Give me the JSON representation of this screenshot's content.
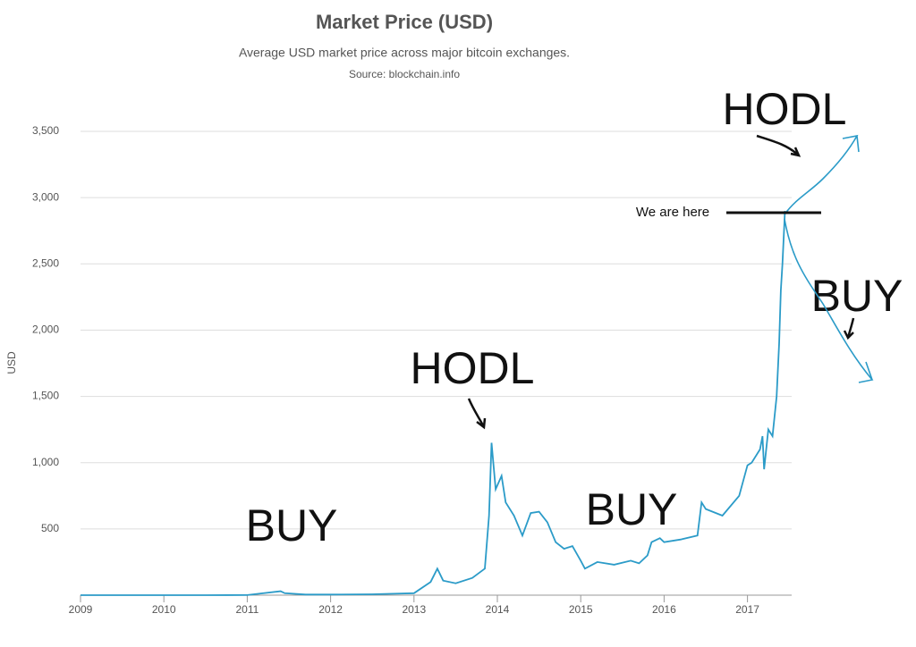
{
  "chart_data": {
    "type": "line",
    "title": "Market Price (USD)",
    "subtitle": "Average USD market price across major bitcoin exchanges.",
    "source": "Source: blockchain.info",
    "y_label": "USD",
    "color": "#2b9bc8",
    "grid": true,
    "xlim": [
      2009,
      2017.53
    ],
    "xticks": [
      2009,
      2010,
      2011,
      2012,
      2013,
      2014,
      2015,
      2016,
      2017
    ],
    "ylim": [
      0,
      3500
    ],
    "yticks": [
      500,
      {
        "value": 1000,
        "label": "1,000"
      },
      {
        "value": 1500,
        "label": "1,500"
      },
      {
        "value": 2000,
        "label": "2,000"
      },
      {
        "value": 2500,
        "label": "2,500"
      },
      {
        "value": 3000,
        "label": "3,000"
      },
      {
        "value": 3500,
        "label": "3,500"
      }
    ],
    "x": [
      2009.0,
      2010.0,
      2010.5,
      2011.0,
      2011.4,
      2011.45,
      2011.7,
      2012.0,
      2012.5,
      2013.0,
      2013.2,
      2013.28,
      2013.35,
      2013.5,
      2013.7,
      2013.85,
      2013.9,
      2013.93,
      2013.98,
      2014.05,
      2014.1,
      2014.2,
      2014.3,
      2014.4,
      2014.5,
      2014.6,
      2014.7,
      2014.8,
      2014.9,
      2015.0,
      2015.05,
      2015.2,
      2015.4,
      2015.6,
      2015.7,
      2015.8,
      2015.85,
      2015.95,
      2016.0,
      2016.2,
      2016.4,
      2016.45,
      2016.5,
      2016.7,
      2016.9,
      2017.0,
      2017.05,
      2017.15,
      2017.18,
      2017.2,
      2017.25,
      2017.3,
      2017.35,
      2017.38,
      2017.4,
      2017.42,
      2017.45
    ],
    "values": [
      0,
      0,
      0,
      1,
      30,
      15,
      5,
      5,
      7,
      15,
      100,
      200,
      110,
      90,
      130,
      200,
      600,
      1150,
      800,
      900,
      700,
      600,
      450,
      620,
      630,
      550,
      400,
      350,
      370,
      260,
      200,
      250,
      230,
      260,
      240,
      300,
      400,
      430,
      400,
      420,
      450,
      700,
      650,
      600,
      750,
      980,
      1000,
      1100,
      1200,
      950,
      1250,
      1200,
      1500,
      1900,
      2300,
      2500,
      2900
    ],
    "annotations": [
      "BUY",
      "HODL",
      "BUY",
      "HODL",
      "BUY",
      "We are here"
    ]
  }
}
